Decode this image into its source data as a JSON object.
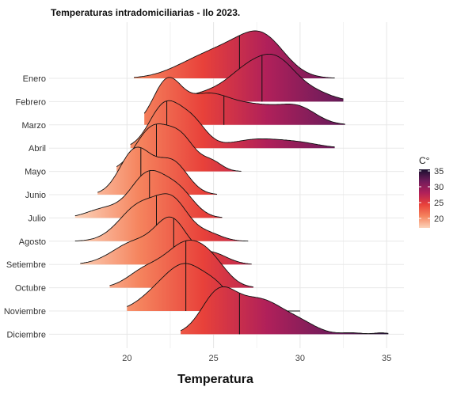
{
  "chart_data": {
    "type": "ridgeline",
    "title": "Temperaturas intradomiciliarias - Ilo 2023.",
    "xlabel": "Temperatura",
    "ylabel": "",
    "xlim": [
      15.5,
      36
    ],
    "x_ticks": [
      20,
      25,
      30,
      35
    ],
    "grid": true,
    "legend": {
      "title": "C°",
      "placement": "right",
      "range": [
        17,
        35.5
      ],
      "ticks": [
        35,
        30,
        25,
        20
      ],
      "colors": [
        "#FCD3BA",
        "#F5845E",
        "#E8413A",
        "#B0205A",
        "#701C5B",
        "#1A1030"
      ]
    },
    "series": [
      {
        "name": "Enero",
        "range": [
          20.4,
          32.0
        ],
        "median": 26.5,
        "peaks": [
          [
            26.5,
            1.0,
            1.8
          ],
          [
            28.0,
            0.75,
            1.2
          ],
          [
            23.8,
            0.35,
            1.5
          ]
        ]
      },
      {
        "name": "Febrero",
        "range": [
          22.2,
          32.5
        ],
        "median": 27.8,
        "peaks": [
          [
            27.2,
            0.95,
            1.3
          ],
          [
            28.8,
            0.7,
            1.0
          ],
          [
            24.5,
            0.2,
            1.3
          ],
          [
            30.5,
            0.3,
            1.2
          ]
        ]
      },
      {
        "name": "Marzo",
        "range": [
          21.0,
          32.6
        ],
        "median": 25.6,
        "peaks": [
          [
            22.3,
            0.85,
            0.8
          ],
          [
            24.5,
            0.55,
            1.3
          ],
          [
            27.5,
            0.4,
            1.8
          ],
          [
            30.0,
            0.25,
            1.0
          ]
        ]
      },
      {
        "name": "Abril",
        "range": [
          20.2,
          32.0
        ],
        "median": 22.3,
        "peaks": [
          [
            22.2,
            1.0,
            0.9
          ],
          [
            23.8,
            0.55,
            0.8
          ],
          [
            27.5,
            0.2,
            1.5
          ],
          [
            30.0,
            0.1,
            1.2
          ]
        ]
      },
      {
        "name": "Mayo",
        "range": [
          19.4,
          26.6
        ],
        "median": 21.7,
        "peaks": [
          [
            21.5,
            0.85,
            1.0
          ],
          [
            23.2,
            0.55,
            0.8
          ],
          [
            24.9,
            0.18,
            0.6
          ]
        ]
      },
      {
        "name": "Junio",
        "range": [
          18.3,
          25.2
        ],
        "median": 20.8,
        "peaks": [
          [
            20.5,
            0.9,
            0.9
          ],
          [
            22.6,
            0.65,
            0.9
          ]
        ]
      },
      {
        "name": "Julio",
        "range": [
          17.0,
          25.5
        ],
        "median": 21.3,
        "peaks": [
          [
            21.2,
            0.95,
            1.0
          ],
          [
            23.0,
            0.55,
            0.9
          ],
          [
            18.7,
            0.2,
            1.0
          ]
        ]
      },
      {
        "name": "Agosto",
        "range": [
          17.0,
          27.0
        ],
        "median": 21.7,
        "peaks": [
          [
            20.8,
            0.75,
            1.2
          ],
          [
            22.7,
            0.7,
            0.9
          ],
          [
            24.7,
            0.15,
            0.8
          ]
        ]
      },
      {
        "name": "Setiembre",
        "range": [
          17.3,
          27.2
        ],
        "median": 22.7,
        "peaks": [
          [
            22.6,
            0.9,
            0.9
          ],
          [
            20.5,
            0.5,
            1.3
          ],
          [
            24.9,
            0.25,
            0.9
          ]
        ]
      },
      {
        "name": "Octubre",
        "range": [
          19.0,
          27.3
        ],
        "median": 23.4,
        "peaks": [
          [
            23.4,
            0.95,
            1.2
          ],
          [
            25.0,
            0.35,
            0.9
          ],
          [
            21.0,
            0.35,
            1.0
          ]
        ]
      },
      {
        "name": "Noviembre",
        "range": [
          20.0,
          30.0
        ],
        "median": 23.4,
        "peaks": [
          [
            23.4,
            1.0,
            1.2
          ],
          [
            25.3,
            0.35,
            0.8
          ],
          [
            21.5,
            0.25,
            1.0
          ]
        ]
      },
      {
        "name": "Diciembre",
        "range": [
          23.1,
          35.1
        ],
        "median": 26.5,
        "peaks": [
          [
            25.3,
            0.85,
            1.0
          ],
          [
            27.7,
            0.7,
            1.3
          ],
          [
            30.0,
            0.2,
            1.0
          ],
          [
            33.0,
            0.03,
            0.6
          ],
          [
            34.7,
            0.03,
            0.4
          ]
        ]
      }
    ]
  }
}
